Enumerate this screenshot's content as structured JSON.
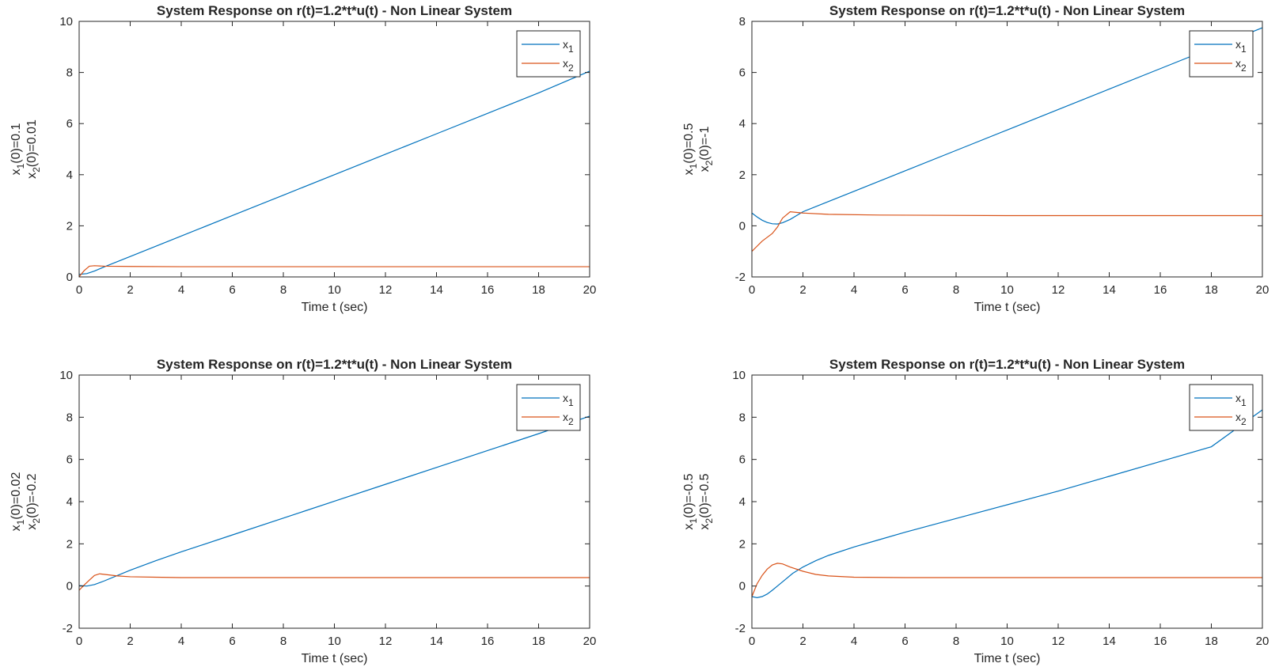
{
  "figure": {
    "colors": {
      "x1": "#0072bd",
      "x2": "#d95319",
      "axis": "#262626",
      "legend_border": "#262626"
    }
  },
  "chart_data": [
    {
      "type": "line",
      "title": "System Response on r(t)=1.2*t*u(t) - Non Linear System",
      "xlabel": "Time t (sec)",
      "ylabel_lines": [
        {
          "base": "x",
          "sub": "1",
          "rest": "(0)=0.1"
        },
        {
          "base": "x",
          "sub": "2",
          "rest": "(0)=0.01"
        }
      ],
      "xlim": [
        0,
        20
      ],
      "ylim": [
        0,
        10
      ],
      "xticks": [
        0,
        2,
        4,
        6,
        8,
        10,
        12,
        14,
        16,
        18,
        20
      ],
      "yticks": [
        0,
        2,
        4,
        6,
        8,
        10
      ],
      "legend": {
        "position": "top-right",
        "entries": [
          {
            "base": "x",
            "sub": "1"
          },
          {
            "base": "x",
            "sub": "2"
          }
        ]
      },
      "series": [
        {
          "name": "x1",
          "x": [
            0,
            0.3,
            0.6,
            1,
            2,
            4,
            6,
            8,
            10,
            12,
            14,
            16,
            18,
            20
          ],
          "y": [
            0.1,
            0.13,
            0.23,
            0.4,
            0.8,
            1.6,
            2.4,
            3.2,
            4.0,
            4.8,
            5.6,
            6.4,
            7.2,
            8.05
          ]
        },
        {
          "name": "x2",
          "x": [
            0,
            0.2,
            0.4,
            0.6,
            1,
            2,
            4,
            8,
            20
          ],
          "y": [
            0.01,
            0.25,
            0.42,
            0.44,
            0.42,
            0.41,
            0.4,
            0.4,
            0.4
          ]
        }
      ]
    },
    {
      "type": "line",
      "title": "System Response on r(t)=1.2*t*u(t) - Non Linear System",
      "xlabel": "Time t (sec)",
      "ylabel_lines": [
        {
          "base": "x",
          "sub": "1",
          "rest": "(0)=0.5"
        },
        {
          "base": "x",
          "sub": "2",
          "rest": "(0)=-1"
        }
      ],
      "xlim": [
        0,
        20
      ],
      "ylim": [
        -2,
        8
      ],
      "xticks": [
        0,
        2,
        4,
        6,
        8,
        10,
        12,
        14,
        16,
        18,
        20
      ],
      "yticks": [
        -2,
        0,
        2,
        4,
        6,
        8
      ],
      "legend": {
        "position": "top-right",
        "entries": [
          {
            "base": "x",
            "sub": "1"
          },
          {
            "base": "x",
            "sub": "2"
          }
        ]
      },
      "series": [
        {
          "name": "x1",
          "x": [
            0,
            0.2,
            0.4,
            0.6,
            0.8,
            1.0,
            1.2,
            1.5,
            2,
            3,
            4,
            6,
            8,
            10,
            12,
            14,
            16,
            18,
            20
          ],
          "y": [
            0.5,
            0.35,
            0.22,
            0.13,
            0.08,
            0.07,
            0.12,
            0.25,
            0.55,
            0.95,
            1.35,
            2.15,
            2.95,
            3.75,
            4.55,
            5.35,
            6.15,
            6.95,
            7.75
          ]
        },
        {
          "name": "x2",
          "x": [
            0,
            0.2,
            0.4,
            0.6,
            0.8,
            1.0,
            1.2,
            1.5,
            2,
            3,
            5,
            10,
            20
          ],
          "y": [
            -1.0,
            -0.8,
            -0.6,
            -0.45,
            -0.3,
            -0.05,
            0.3,
            0.55,
            0.5,
            0.45,
            0.42,
            0.4,
            0.4
          ]
        }
      ]
    },
    {
      "type": "line",
      "title": "System Response on r(t)=1.2*t*u(t) - Non Linear System",
      "xlabel": "Time t (sec)",
      "ylabel_lines": [
        {
          "base": "x",
          "sub": "1",
          "rest": "(0)=0.02"
        },
        {
          "base": "x",
          "sub": "2",
          "rest": "(0)=-0.2"
        }
      ],
      "xlim": [
        0,
        20
      ],
      "ylim": [
        -2,
        10
      ],
      "xticks": [
        0,
        2,
        4,
        6,
        8,
        10,
        12,
        14,
        16,
        18,
        20
      ],
      "yticks": [
        -2,
        0,
        2,
        4,
        6,
        8,
        10
      ],
      "legend": {
        "position": "top-right",
        "entries": [
          {
            "base": "x",
            "sub": "1"
          },
          {
            "base": "x",
            "sub": "2"
          }
        ]
      },
      "series": [
        {
          "name": "x1",
          "x": [
            0,
            0.3,
            0.6,
            1,
            1.5,
            2,
            3,
            4,
            6,
            8,
            10,
            12,
            14,
            16,
            18,
            20
          ],
          "y": [
            0.02,
            0.0,
            0.07,
            0.25,
            0.5,
            0.75,
            1.2,
            1.62,
            2.42,
            3.22,
            4.02,
            4.82,
            5.62,
            6.42,
            7.22,
            8.05
          ]
        },
        {
          "name": "x2",
          "x": [
            0,
            0.2,
            0.4,
            0.6,
            0.8,
            1.0,
            1.5,
            2,
            3,
            4,
            6,
            10,
            20
          ],
          "y": [
            -0.2,
            0.05,
            0.28,
            0.5,
            0.58,
            0.55,
            0.48,
            0.44,
            0.42,
            0.4,
            0.4,
            0.4,
            0.4
          ]
        }
      ]
    },
    {
      "type": "line",
      "title": "System Response on r(t)=1.2*t*u(t) - Non Linear System",
      "xlabel": "Time t (sec)",
      "ylabel_lines": [
        {
          "base": "x",
          "sub": "1",
          "rest": "(0)=-0.5"
        },
        {
          "base": "x",
          "sub": "2",
          "rest": "(0)=-0.5"
        }
      ],
      "xlim": [
        0,
        20
      ],
      "ylim": [
        -2,
        10
      ],
      "xticks": [
        0,
        2,
        4,
        6,
        8,
        10,
        12,
        14,
        16,
        18,
        20
      ],
      "yticks": [
        -2,
        0,
        2,
        4,
        6,
        8,
        10
      ],
      "legend": {
        "position": "top-right",
        "entries": [
          {
            "base": "x",
            "sub": "1"
          },
          {
            "base": "x",
            "sub": "2"
          }
        ]
      },
      "series": [
        {
          "name": "x1",
          "x": [
            0,
            0.2,
            0.4,
            0.6,
            0.8,
            1.0,
            1.3,
            1.6,
            2,
            2.5,
            3,
            4,
            5,
            6,
            8,
            10,
            12,
            14,
            16,
            18,
            20
          ],
          "y": [
            -0.5,
            -0.55,
            -0.5,
            -0.38,
            -0.2,
            0.0,
            0.3,
            0.6,
            0.9,
            1.2,
            1.45,
            1.85,
            2.2,
            2.55,
            3.2,
            3.85,
            4.5,
            5.2,
            5.9,
            6.6,
            8.35
          ]
        },
        {
          "name": "x2",
          "x": [
            0,
            0.2,
            0.4,
            0.6,
            0.8,
            1.0,
            1.2,
            1.5,
            2,
            2.5,
            3,
            4,
            6,
            10,
            20
          ],
          "y": [
            -0.5,
            0.1,
            0.5,
            0.8,
            1.0,
            1.08,
            1.05,
            0.9,
            0.7,
            0.55,
            0.48,
            0.42,
            0.4,
            0.4,
            0.4
          ]
        }
      ]
    }
  ]
}
